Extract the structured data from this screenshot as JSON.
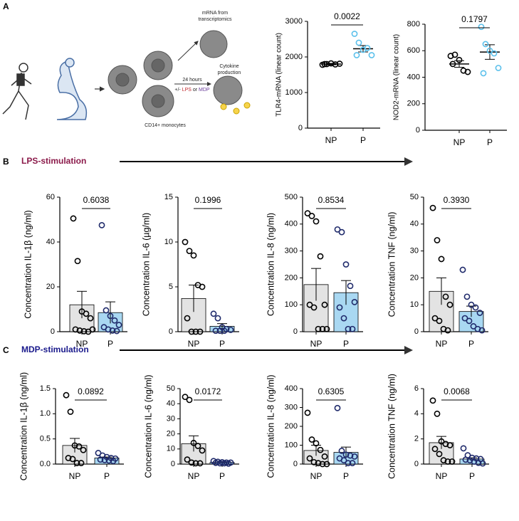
{
  "panel_labels": [
    "A",
    "B",
    "C"
  ],
  "illustration": {
    "mrna": [
      "mRNA from",
      "transcriptomics"
    ],
    "cytokine": [
      "Cytokine",
      "production"
    ],
    "hours": "24 hours",
    "treatment": [
      "+/- ",
      "LPS",
      " or ",
      "MDP"
    ],
    "cells": "CD14+ monocytes"
  },
  "sections": [
    "LPS-stimulation",
    "MDP-stimulation"
  ],
  "chart_data": [
    {
      "type": "dot",
      "ylabel": "TLR4-mRNA (linear count)",
      "categories": [
        "NP",
        "P"
      ],
      "annotation": "0.0022",
      "ylim": [
        0,
        3000
      ],
      "yticks": [
        0,
        1000,
        2000,
        3000
      ],
      "colors": [
        "#000000",
        "#5bc0eb"
      ],
      "points": [
        [
          1780,
          1800,
          1820,
          1790,
          1810,
          1800
        ],
        [
          2650,
          2400,
          2200,
          2250,
          2050,
          2050
        ]
      ],
      "means": [
        1800,
        2230
      ],
      "sem": [
        20,
        90
      ]
    },
    {
      "type": "dot",
      "ylabel": "NOD2-mRNA (linear count)",
      "categories": [
        "NP",
        "P"
      ],
      "annotation": "0.1797",
      "ylim": [
        0,
        800
      ],
      "yticks": [
        0,
        200,
        400,
        600,
        800
      ],
      "colors": [
        "#000000",
        "#5bc0eb"
      ],
      "points": [
        [
          560,
          570,
          530,
          450,
          440,
          500
        ],
        [
          780,
          650,
          600,
          580,
          470,
          430
        ]
      ],
      "means": [
        500,
        590
      ],
      "sem": [
        25,
        55
      ]
    },
    {
      "type": "bar",
      "ylabel": "Concentration IL-1β (ng/ml)",
      "categories": [
        "NP",
        "P"
      ],
      "annotation": "0.6038",
      "ylim": [
        0,
        60
      ],
      "yticks": [
        0,
        20,
        40,
        60
      ],
      "colors": [
        "#000000",
        "#1f2a6b"
      ],
      "bar_colors": [
        "#e3e3e3",
        "#a9d8f2"
      ],
      "points": [
        [
          50.5,
          31.5,
          9,
          8,
          6,
          1,
          0.5,
          0.2,
          0,
          1
        ],
        [
          47.5,
          9.5,
          7,
          5,
          3,
          2,
          1,
          0.5,
          0.3
        ]
      ],
      "means": [
        12,
        8.5
      ],
      "sem": [
        6,
        4.8
      ]
    },
    {
      "type": "bar",
      "ylabel": "Concentration IL-6 (µg/ml)",
      "categories": [
        "NP",
        "P"
      ],
      "annotation": "0.1996",
      "ylim": [
        0,
        15
      ],
      "yticks": [
        0,
        5,
        10,
        15
      ],
      "colors": [
        "#000000",
        "#1f2a6b"
      ],
      "bar_colors": [
        "#e3e3e3",
        "#a9d8f2"
      ],
      "points": [
        [
          10,
          9,
          8.5,
          5.2,
          5,
          1.5,
          0,
          0,
          0
        ],
        [
          2,
          1.5,
          0.5,
          0.3,
          0.2,
          0.1,
          0.1,
          0.1
        ]
      ],
      "means": [
        3.7,
        0.6
      ],
      "sem": [
        1.5,
        0.3
      ]
    },
    {
      "type": "bar",
      "ylabel": "Concentration IL-8 (ng/ml)",
      "categories": [
        "NP",
        "P"
      ],
      "annotation": "0.8534",
      "ylim": [
        0,
        500
      ],
      "yticks": [
        0,
        100,
        200,
        300,
        400,
        500
      ],
      "colors": [
        "#000000",
        "#1f2a6b"
      ],
      "bar_colors": [
        "#e3e3e3",
        "#a9d8f2"
      ],
      "points": [
        [
          440,
          430,
          410,
          280,
          100,
          100,
          90,
          10,
          10,
          10
        ],
        [
          380,
          370,
          250,
          170,
          110,
          90,
          50,
          10,
          10
        ]
      ],
      "means": [
        175,
        145
      ],
      "sem": [
        60,
        45
      ]
    },
    {
      "type": "bar",
      "ylabel": "Concentration TNF (ng/ml)",
      "categories": [
        "NP",
        "P"
      ],
      "annotation": "0.3930",
      "ylim": [
        0,
        50
      ],
      "yticks": [
        0,
        10,
        20,
        30,
        40,
        50
      ],
      "colors": [
        "#000000",
        "#1f2a6b"
      ],
      "bar_colors": [
        "#e3e3e3",
        "#a9d8f2"
      ],
      "points": [
        [
          46,
          34,
          27,
          13,
          10,
          5,
          4,
          1,
          0.5
        ],
        [
          23,
          13,
          10,
          9,
          7,
          5,
          4,
          2,
          1,
          0.5
        ]
      ],
      "means": [
        15,
        7.5
      ],
      "sem": [
        5,
        2
      ]
    },
    {
      "type": "bar",
      "ylabel": "Concentration IL-1β (ng/ml)",
      "categories": [
        "NP",
        "P"
      ],
      "annotation": "0.0892",
      "ylim": [
        0,
        1.5
      ],
      "yticks": [
        {
          "value": 0,
          "label": "0.0"
        },
        0.5,
        {
          "value": 1,
          "label": "1.0"
        },
        1.5
      ],
      "colors": [
        "#000000",
        "#1f2a6b"
      ],
      "bar_colors": [
        "#e3e3e3",
        "#a9d8f2"
      ],
      "points": [
        [
          1.37,
          1.04,
          0.37,
          0.35,
          0.28,
          0.12,
          0.1,
          0.02,
          0.02
        ],
        [
          0.22,
          0.17,
          0.14,
          0.12,
          0.11,
          0.09,
          0.08,
          0.07,
          0.06
        ]
      ],
      "means": [
        0.37,
        0.12
      ],
      "sem": [
        0.14,
        0.02
      ]
    },
    {
      "type": "bar",
      "ylabel": "Concentration IL-6 (ng/ml)",
      "categories": [
        "NP",
        "P"
      ],
      "annotation": "0.0172",
      "ylim": [
        0,
        50
      ],
      "yticks": [
        0,
        10,
        20,
        30,
        40,
        50
      ],
      "colors": [
        "#000000",
        "#1f2a6b"
      ],
      "bar_colors": [
        "#e3e3e3",
        "#a9d8f2"
      ],
      "points": [
        [
          44.5,
          42.5,
          14,
          12,
          9,
          3,
          1,
          0.5,
          0.5
        ],
        [
          2,
          1.5,
          1.2,
          1,
          1,
          0.8,
          0.5,
          0.5,
          0.3
        ]
      ],
      "means": [
        13.5,
        1.1
      ],
      "sem": [
        5.2,
        0.2
      ]
    },
    {
      "type": "bar",
      "ylabel": "Concentration IL-8 (ng/ml)",
      "categories": [
        "NP",
        "P"
      ],
      "annotation": "0.6305",
      "ylim": [
        0,
        400
      ],
      "yticks": [
        0,
        100,
        200,
        300,
        400
      ],
      "colors": [
        "#000000",
        "#1f2a6b"
      ],
      "bar_colors": [
        "#e3e3e3",
        "#a9d8f2"
      ],
      "points": [
        [
          272,
          130,
          110,
          75,
          40,
          30,
          10,
          5,
          0,
          0
        ],
        [
          297,
          70,
          50,
          45,
          40,
          30,
          20,
          5,
          5
        ]
      ],
      "means": [
        72,
        62
      ],
      "sem": [
        28,
        28
      ]
    },
    {
      "type": "bar",
      "ylabel": "Concentration TNF (ng/ml)",
      "categories": [
        "NP",
        "P"
      ],
      "annotation": "0.0068",
      "ylim": [
        0,
        6
      ],
      "yticks": [
        0,
        2,
        4,
        6
      ],
      "colors": [
        "#000000",
        "#1f2a6b"
      ],
      "bar_colors": [
        "#e3e3e3",
        "#a9d8f2"
      ],
      "points": [
        [
          5.05,
          4,
          1.8,
          1.6,
          1.5,
          1.2,
          0.8,
          0.3,
          0.2,
          0.2
        ],
        [
          1.25,
          0.7,
          0.5,
          0.45,
          0.4,
          0.35,
          0.3,
          0.2,
          0.1,
          0.05
        ]
      ],
      "means": [
        1.7,
        0.4
      ],
      "sem": [
        0.5,
        0.1
      ]
    }
  ]
}
